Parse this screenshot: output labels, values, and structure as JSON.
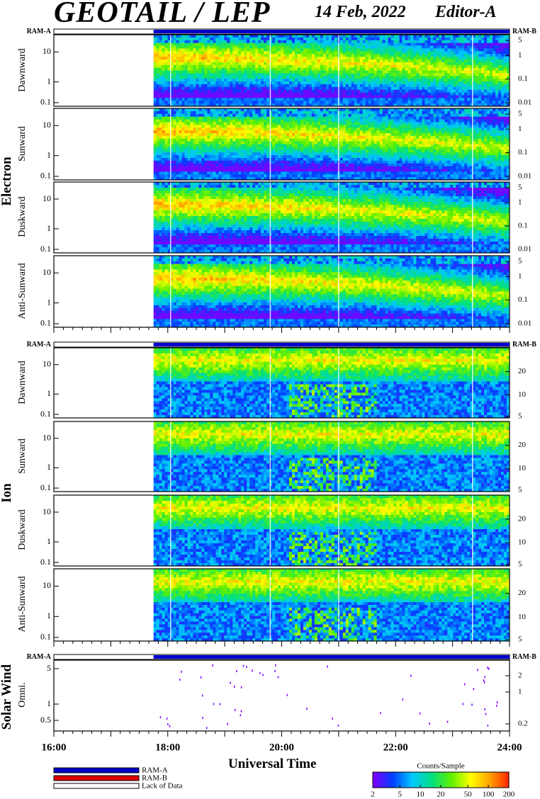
{
  "header": {
    "title": "GEOTAIL / LEP",
    "date": "14 Feb, 2022",
    "editor": "Editor-A"
  },
  "ram_labels": {
    "a": "RAM-A",
    "b": "RAM-B"
  },
  "chart_data": {
    "type": "heatmap",
    "x_axis": {
      "label": "Universal Time",
      "range_hours": [
        16,
        24
      ],
      "major_tick_labels": [
        "16:00",
        "18:00",
        "20:00",
        "22:00",
        "24:00"
      ],
      "data_start_hour": 17.75
    },
    "groups": [
      {
        "name": "Electron",
        "panels": [
          {
            "label": "Dawnward",
            "left_ticks": [
              "10",
              "1",
              "0.1"
            ],
            "right_ticks": [
              "5",
              "1",
              "0.1",
              "0.01"
            ]
          },
          {
            "label": "Sunward",
            "left_ticks": [
              "10",
              "1",
              "0.1"
            ],
            "right_ticks": [
              "5",
              "1",
              "0.1",
              "0.01"
            ]
          },
          {
            "label": "Duskward",
            "left_ticks": [
              "10",
              "1",
              "0.1"
            ],
            "right_ticks": [
              "5",
              "1",
              "0.1",
              "0.01"
            ]
          },
          {
            "label": "Anti-Sunward",
            "left_ticks": [
              "10",
              "1",
              "0.1"
            ],
            "right_ticks": [
              "5",
              "1",
              "0.1",
              "0.01"
            ]
          }
        ]
      },
      {
        "name": "Ion",
        "panels": [
          {
            "label": "Dawnward",
            "left_ticks": [
              "10",
              "1",
              "0.1"
            ],
            "right_ticks": [
              "20",
              "10",
              "5"
            ]
          },
          {
            "label": "Sunward",
            "left_ticks": [
              "10",
              "1",
              "0.1"
            ],
            "right_ticks": [
              "20",
              "10",
              "5"
            ]
          },
          {
            "label": "Duskward",
            "left_ticks": [
              "10",
              "1",
              "0.1"
            ],
            "right_ticks": [
              "20",
              "10",
              "5"
            ]
          },
          {
            "label": "Anti-Sunward",
            "left_ticks": [
              "10",
              "1",
              "0.1"
            ],
            "right_ticks": [
              "20",
              "10",
              "5"
            ]
          }
        ]
      },
      {
        "name": "Solar Wind",
        "panels": [
          {
            "label": "Omni.",
            "left_ticks": [
              "5",
              "1",
              "0.5"
            ],
            "right_ticks": [
              "2",
              "1",
              "0.2"
            ]
          }
        ]
      }
    ],
    "legend": {
      "items": [
        {
          "label": "RAM-A",
          "color": "#0000cc"
        },
        {
          "label": "RAM-B",
          "color": "#dd0000"
        },
        {
          "label": "Lack of Data",
          "color": "#ffffff"
        }
      ]
    },
    "colorbar": {
      "title": "Counts/Sample",
      "tick_labels": [
        "2",
        "5",
        "10",
        "20",
        "50",
        "100",
        "200"
      ],
      "colors": [
        "#8000ff",
        "#0040ff",
        "#00c8ff",
        "#00e080",
        "#60f000",
        "#ffff00",
        "#ffa000",
        "#ff2000"
      ]
    }
  }
}
